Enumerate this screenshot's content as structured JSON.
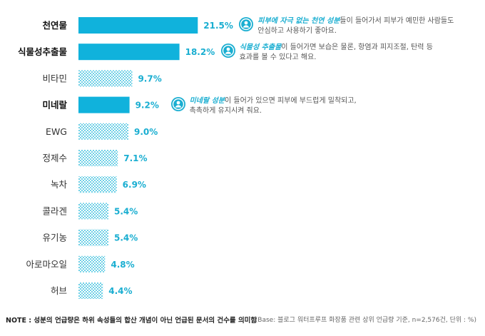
{
  "chart_data": {
    "type": "bar",
    "orientation": "horizontal",
    "categories": [
      "천연물",
      "식물성추출물",
      "비타민",
      "미네랄",
      "EWG",
      "정제수",
      "녹차",
      "콜라겐",
      "유기농",
      "아로마오일",
      "허브"
    ],
    "values": [
      21.5,
      18.2,
      9.7,
      9.2,
      9.0,
      7.1,
      6.9,
      5.4,
      5.4,
      4.8,
      4.4
    ],
    "value_labels": [
      "21.5%",
      "18.2%",
      "9.7%",
      "9.2%",
      "9.0%",
      "7.1%",
      "6.9%",
      "5.4%",
      "5.4%",
      "4.8%",
      "4.4%"
    ],
    "highlighted": [
      "천연물",
      "식물성추출물",
      "미네랄"
    ],
    "colors": {
      "highlight": "#10b2dc",
      "pattern_fg": "#6fd0e6",
      "pattern_bg": "#ffffff",
      "value_text": "#1aaed1"
    },
    "annotations": [
      {
        "category": "천연물",
        "highlight": "피부에 자극 없는 천연 성분",
        "line1_rest": "들이 들어가서 피부가 예민한 사람들도",
        "line2": "안심하고 사용하기 좋아요."
      },
      {
        "category": "식물성추출물",
        "highlight": "식물성 추출물",
        "line1_rest": "이 들어가면 보습은 물론, 항염과 피지조절, 탄력 등",
        "line2": "효과를 볼 수 있다고 해요."
      },
      {
        "category": "미네랄",
        "highlight": "미네랄 성분",
        "line1_rest": "이 들어가 있으면 피부에 부드럽게 밀착되고,",
        "line2": "촉촉하게 유지시켜 줘요."
      }
    ],
    "icon": "person-icon"
  },
  "footer": {
    "note": "NOTE : 성분의 언급량은 하위 속성들의 합산 개념이 아닌 언급된 문서의 건수를 의미함",
    "base": "(Base: 블로그 워터프루프 화장품 관련 상위 언급량 기준, n=2,576건, 단위 : %)"
  }
}
